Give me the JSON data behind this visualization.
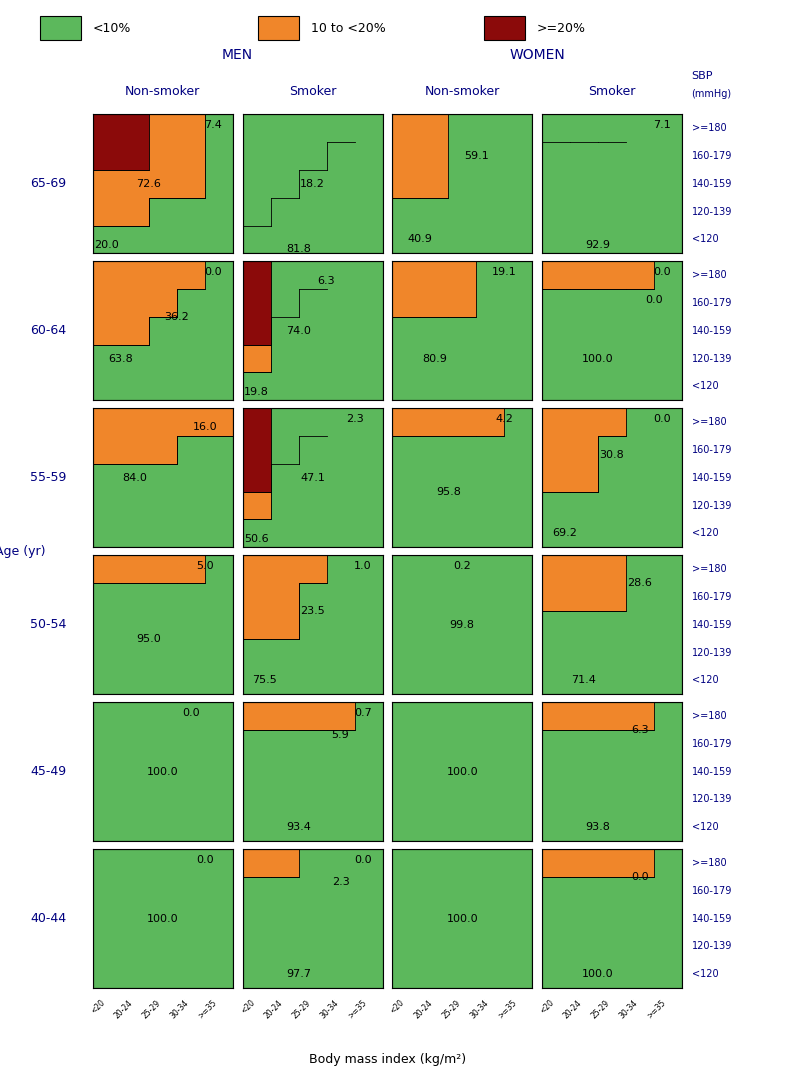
{
  "colors": {
    "green": "#5cb85c",
    "orange": "#f0862a",
    "darkred": "#8b0a0a"
  },
  "age_groups": [
    "65-69",
    "60-64",
    "55-59",
    "50-54",
    "45-49",
    "40-44"
  ],
  "col_headers": [
    "Non-smoker",
    "Smoker",
    "Non-smoker",
    "Smoker"
  ],
  "section_headers": [
    "MEN",
    "WOMEN"
  ],
  "sbp_labels": [
    ">=180",
    "160-179",
    "140-159",
    "120-139",
    "<120"
  ],
  "bmi_labels": [
    "<20",
    "20-24",
    "25-29",
    "30-34",
    ">=35"
  ],
  "xlabel": "Body mass index (kg/m²)",
  "staircase": {
    "65-69": {
      "men_nonsmoker": {
        "g2o": [
          1,
          1,
          2,
          2,
          5
        ],
        "o2d": [
          3,
          3,
          5,
          5,
          5
        ],
        "label_g": [
          0.5,
          0.3,
          "20.0"
        ],
        "label_o": [
          2.0,
          2.5,
          "72.6"
        ],
        "label_d": [
          4.3,
          4.6,
          "7.4"
        ]
      },
      "men_smoker": {
        "g2o": [
          5,
          5,
          5,
          5,
          5
        ],
        "o2d": [
          1,
          2,
          3,
          4,
          5
        ],
        "label_g": [
          2.0,
          0.15,
          "81.8"
        ],
        "label_o": [
          2.5,
          2.5,
          "18.2"
        ],
        "label_d": null
      },
      "women_nonsmoker": {
        "g2o": [
          2,
          2,
          5,
          5,
          5
        ],
        "o2d": [
          5,
          5,
          5,
          5,
          5
        ],
        "label_g": [
          1.0,
          0.5,
          "40.9"
        ],
        "label_o": [
          3.0,
          3.5,
          "59.1"
        ],
        "label_d": null
      },
      "women_smoker": {
        "g2o": [
          5,
          5,
          5,
          5,
          5
        ],
        "o2d": [
          4,
          4,
          4,
          5,
          5
        ],
        "label_g": [
          2.0,
          0.3,
          "92.9"
        ],
        "label_o": null,
        "label_d": [
          4.3,
          4.6,
          "7.1"
        ]
      }
    },
    "60-64": {
      "men_nonsmoker": {
        "g2o": [
          2,
          2,
          3,
          4,
          5
        ],
        "o2d": [
          5,
          5,
          5,
          5,
          5
        ],
        "label_g": [
          1.0,
          1.5,
          "63.8"
        ],
        "label_o": [
          3.0,
          3.0,
          "36.2"
        ],
        "label_d": [
          4.3,
          4.6,
          "0.0"
        ]
      },
      "men_smoker": {
        "g2o": [
          1,
          5,
          5,
          5,
          5
        ],
        "o2d": [
          2,
          3,
          4,
          5,
          5
        ],
        "label_g": [
          0.5,
          0.3,
          "19.8"
        ],
        "label_o": [
          2.0,
          2.5,
          "74.0"
        ],
        "label_d": [
          3.0,
          4.3,
          "6.3"
        ]
      },
      "women_nonsmoker": {
        "g2o": [
          3,
          3,
          3,
          5,
          5
        ],
        "o2d": [
          5,
          5,
          5,
          5,
          5
        ],
        "label_g": [
          1.5,
          1.5,
          "80.9"
        ],
        "label_o": null,
        "label_d": [
          4.0,
          4.6,
          "19.1"
        ]
      },
      "women_smoker": {
        "g2o": [
          4,
          4,
          4,
          4,
          5
        ],
        "o2d": [
          5,
          5,
          5,
          5,
          5
        ],
        "label_g": [
          2.0,
          1.5,
          "100.0"
        ],
        "label_o": [
          4.0,
          3.6,
          "0.0"
        ],
        "label_d": [
          4.3,
          4.6,
          "0.0"
        ]
      }
    },
    "55-59": {
      "men_nonsmoker": {
        "g2o": [
          3,
          3,
          3,
          4,
          4
        ],
        "o2d": [
          5,
          5,
          5,
          5,
          5
        ],
        "label_g": [
          1.5,
          2.5,
          "84.0"
        ],
        "label_o": [
          4.0,
          4.3,
          "16.0"
        ],
        "label_d": null
      },
      "men_smoker": {
        "g2o": [
          1,
          5,
          5,
          5,
          5
        ],
        "o2d": [
          2,
          3,
          4,
          5,
          5
        ],
        "label_g": [
          0.5,
          0.3,
          "50.6"
        ],
        "label_o": [
          2.5,
          2.5,
          "47.1"
        ],
        "label_d": [
          4.0,
          4.6,
          "2.3"
        ]
      },
      "women_nonsmoker": {
        "g2o": [
          4,
          4,
          4,
          4,
          5
        ],
        "o2d": [
          5,
          5,
          5,
          5,
          5
        ],
        "label_g": [
          2.0,
          2.0,
          "95.8"
        ],
        "label_o": [
          4.0,
          4.6,
          "4.2"
        ],
        "label_d": null
      },
      "women_smoker": {
        "g2o": [
          2,
          2,
          4,
          5,
          5
        ],
        "o2d": [
          5,
          5,
          5,
          5,
          5
        ],
        "label_g": [
          0.8,
          0.5,
          "69.2"
        ],
        "label_o": [
          2.5,
          3.3,
          "30.8"
        ],
        "label_d": [
          4.3,
          4.6,
          "0.0"
        ]
      }
    },
    "50-54": {
      "men_nonsmoker": {
        "g2o": [
          4,
          4,
          4,
          4,
          5
        ],
        "o2d": [
          5,
          5,
          5,
          5,
          5
        ],
        "label_g": [
          2.0,
          2.0,
          "95.0"
        ],
        "label_o": [
          4.0,
          4.6,
          "5.0"
        ],
        "label_d": null
      },
      "men_smoker": {
        "g2o": [
          2,
          2,
          4,
          5,
          5
        ],
        "o2d": [
          5,
          5,
          5,
          5,
          5
        ],
        "label_g": [
          0.8,
          0.5,
          "75.5"
        ],
        "label_o": [
          2.5,
          3.0,
          "23.5"
        ],
        "label_d": [
          4.3,
          4.6,
          "1.0"
        ]
      },
      "women_nonsmoker": {
        "g2o": [
          5,
          5,
          5,
          5,
          5
        ],
        "o2d": [
          5,
          5,
          5,
          5,
          5
        ],
        "label_g": [
          2.5,
          2.5,
          "99.8"
        ],
        "label_o": [
          2.5,
          4.6,
          "0.2"
        ],
        "label_d": null
      },
      "women_smoker": {
        "g2o": [
          3,
          3,
          3,
          5,
          5
        ],
        "o2d": [
          5,
          5,
          5,
          5,
          5
        ],
        "label_g": [
          1.5,
          0.5,
          "71.4"
        ],
        "label_o": [
          3.5,
          4.0,
          "28.6"
        ],
        "label_d": null
      }
    },
    "45-49": {
      "men_nonsmoker": {
        "g2o": [
          5,
          5,
          5,
          5,
          5
        ],
        "o2d": [
          5,
          5,
          5,
          5,
          5
        ],
        "label_g": [
          2.5,
          2.5,
          "100.0"
        ],
        "label_o": [
          3.5,
          4.6,
          "0.0"
        ],
        "label_d": null
      },
      "men_smoker": {
        "g2o": [
          4,
          4,
          4,
          4,
          5
        ],
        "o2d": [
          5,
          5,
          5,
          5,
          5
        ],
        "label_g": [
          2.0,
          0.5,
          "93.4"
        ],
        "label_o": [
          3.5,
          3.8,
          "5.9"
        ],
        "label_d": [
          4.3,
          4.6,
          "0.7"
        ]
      },
      "women_nonsmoker": {
        "g2o": [
          5,
          5,
          5,
          5,
          5
        ],
        "o2d": [
          5,
          5,
          5,
          5,
          5
        ],
        "label_g": [
          2.5,
          2.5,
          "100.0"
        ],
        "label_o": null,
        "label_d": null
      },
      "women_smoker": {
        "g2o": [
          4,
          4,
          4,
          4,
          5
        ],
        "o2d": [
          5,
          5,
          5,
          5,
          5
        ],
        "label_g": [
          2.0,
          0.5,
          "93.8"
        ],
        "label_o": [
          3.5,
          4.0,
          "6.3"
        ],
        "label_d": null
      }
    },
    "40-44": {
      "men_nonsmoker": {
        "g2o": [
          5,
          5,
          5,
          5,
          5
        ],
        "o2d": [
          5,
          5,
          5,
          5,
          5
        ],
        "label_g": [
          2.5,
          2.5,
          "100.0"
        ],
        "label_o": [
          4.0,
          4.6,
          "0.0"
        ],
        "label_d": null
      },
      "men_smoker": {
        "g2o": [
          4,
          4,
          5,
          5,
          5
        ],
        "o2d": [
          5,
          5,
          5,
          5,
          5
        ],
        "label_g": [
          2.0,
          0.5,
          "97.7"
        ],
        "label_o": [
          3.5,
          3.8,
          "2.3"
        ],
        "label_d": [
          4.3,
          4.6,
          "0.0"
        ]
      },
      "women_nonsmoker": {
        "g2o": [
          5,
          5,
          5,
          5,
          5
        ],
        "o2d": [
          5,
          5,
          5,
          5,
          5
        ],
        "label_g": [
          2.5,
          2.5,
          "100.0"
        ],
        "label_o": null,
        "label_d": null
      },
      "women_smoker": {
        "g2o": [
          4,
          4,
          4,
          4,
          5
        ],
        "o2d": [
          5,
          5,
          5,
          5,
          5
        ],
        "label_g": [
          2.0,
          0.5,
          "100.0"
        ],
        "label_o": [
          3.5,
          4.0,
          "0.0"
        ],
        "label_d": null
      }
    }
  }
}
